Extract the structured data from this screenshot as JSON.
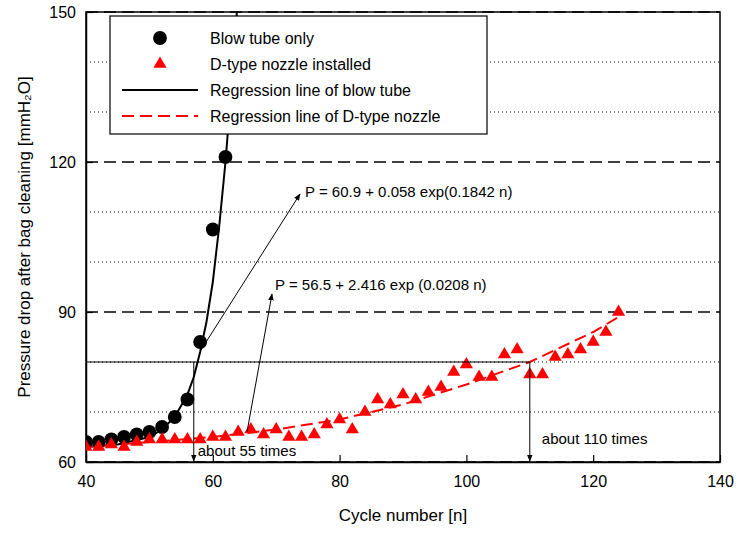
{
  "chart_data": {
    "type": "scatter",
    "x_label": "Cycle number [n]",
    "y_label": "Pressure drop after bag cleaning [mmH₂O]",
    "xlim": [
      40,
      140
    ],
    "xticks": [
      40,
      60,
      80,
      100,
      120,
      140
    ],
    "ylim": [
      60,
      150
    ],
    "yticks": [
      60,
      90,
      120,
      150
    ],
    "minor_yticks": [
      70,
      80,
      100,
      110,
      130,
      140
    ],
    "grid": true,
    "legend": "upper left",
    "series": [
      {
        "name": "Blow tube only",
        "type": "scatter",
        "marker": "circle",
        "color": "#000000",
        "x": [
          40,
          42,
          44,
          46,
          48,
          50,
          52,
          54,
          56,
          58,
          60,
          62
        ],
        "values": [
          64,
          64,
          64.5,
          65,
          65.5,
          66,
          67,
          69,
          72.5,
          84,
          106.5,
          121
        ]
      },
      {
        "name": "D-type nozzle installed",
        "type": "scatter",
        "marker": "triangle",
        "color": "#ff0000",
        "x": [
          40,
          42,
          44,
          46,
          48,
          50,
          52,
          54,
          56,
          58,
          60,
          62,
          64,
          66,
          68,
          70,
          72,
          74,
          76,
          78,
          80,
          82,
          84,
          86,
          88,
          90,
          92,
          94,
          96,
          98,
          100,
          102,
          104,
          106,
          108,
          110,
          112,
          114,
          116,
          118,
          120,
          122,
          124
        ],
        "values": [
          63,
          63,
          63.5,
          63,
          64,
          64.5,
          64.5,
          64.5,
          64.5,
          64.5,
          65,
          65,
          66,
          66.5,
          65.5,
          66.5,
          65,
          65,
          65.5,
          67.5,
          68.5,
          66.5,
          70,
          72.5,
          71.5,
          73.5,
          72.5,
          74,
          75,
          78,
          79.5,
          77,
          77,
          81.5,
          82.5,
          77.5,
          77.5,
          81,
          81.5,
          82.5,
          84,
          86,
          90
        ]
      },
      {
        "name": "Regression line of blow tube",
        "type": "line",
        "line_style": "solid",
        "color": "#000000",
        "x": [
          40,
          45,
          50,
          52,
          54,
          56,
          57,
          58,
          59,
          60,
          61,
          62,
          63,
          63.8
        ],
        "values": [
          63,
          63.5,
          65,
          66.5,
          69,
          73.5,
          77,
          82,
          88,
          96,
          107,
          120,
          136,
          150
        ]
      },
      {
        "name": "Regression line of D-type nozzle",
        "type": "line",
        "line_style": "dashed",
        "color": "#ff0000",
        "x": [
          40,
          50,
          60,
          70,
          80,
          90,
          100,
          110,
          120,
          124
        ],
        "values": [
          63,
          64,
          65,
          66.5,
          68.5,
          71.5,
          75.5,
          80,
          86,
          89
        ]
      }
    ],
    "equations": [
      "P = 60.9 + 0.058 exp(0.1842 n)",
      "P = 56.5 + 2.416 exp (0.0208 n)"
    ],
    "annotations": [
      {
        "text": "about 55 times",
        "x": 57,
        "y": 80
      },
      {
        "text": "about 110 times",
        "x": 110,
        "y": 80
      }
    ]
  }
}
